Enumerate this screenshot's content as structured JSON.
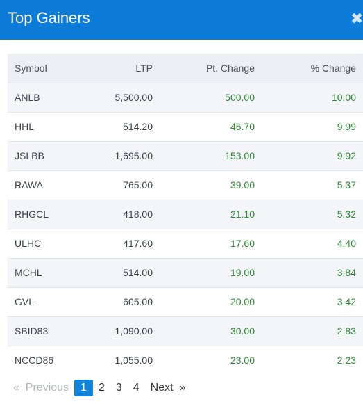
{
  "header": {
    "title": "Top Gainers",
    "close_icon": "close-icon"
  },
  "table": {
    "columns": [
      "Symbol",
      "LTP",
      "Pt. Change",
      "% Change"
    ],
    "rows": [
      [
        "ANLB",
        "5,500.00",
        "500.00",
        "10.00"
      ],
      [
        "HHL",
        "514.20",
        "46.70",
        "9.99"
      ],
      [
        "JSLBB",
        "1,695.00",
        "153.00",
        "9.92"
      ],
      [
        "RAWA",
        "765.00",
        "39.00",
        "5.37"
      ],
      [
        "RHGCL",
        "418.00",
        "21.10",
        "5.32"
      ],
      [
        "ULHC",
        "417.60",
        "17.60",
        "4.40"
      ],
      [
        "MCHL",
        "514.00",
        "19.00",
        "3.84"
      ],
      [
        "GVL",
        "605.00",
        "20.00",
        "3.42"
      ],
      [
        "SBID83",
        "1,090.00",
        "30.00",
        "2.83"
      ],
      [
        "NCCD86",
        "1,055.00",
        "23.00",
        "2.23"
      ]
    ]
  },
  "pagination": {
    "prev_arrow": "«",
    "previous": "Previous",
    "pages": [
      "1",
      "2",
      "3",
      "4"
    ],
    "current_page": "1",
    "next": "Next",
    "next_arrow": "»"
  },
  "colors": {
    "header": "#0d7bd8",
    "positive": "#2c8a34",
    "active_page": "#1283d8"
  }
}
